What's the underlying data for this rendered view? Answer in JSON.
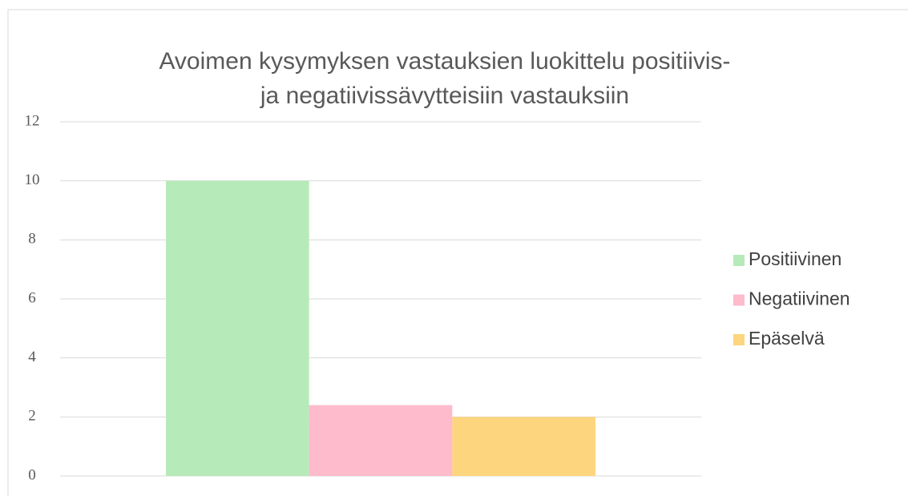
{
  "chart_data": {
    "type": "bar",
    "title": [
      "Avoimen kysymyksen vastauksien luokittelu positiivis-",
      "ja negatiivissävytteisiin vastauksiin"
    ],
    "categories": [
      null
    ],
    "series": [
      {
        "name": "Positiivinen",
        "color": "#b6ebb9",
        "values": [
          10
        ]
      },
      {
        "name": "Negatiivinen",
        "color": "#fdbbcc",
        "values": [
          2.4
        ]
      },
      {
        "name": "Epäselvä",
        "color": "#fdd57e",
        "values": [
          2
        ]
      }
    ],
    "ylim": [
      0,
      12
    ],
    "yticks": [
      0,
      2,
      4,
      6,
      8,
      10,
      12
    ],
    "grid": true,
    "legend": "right"
  }
}
